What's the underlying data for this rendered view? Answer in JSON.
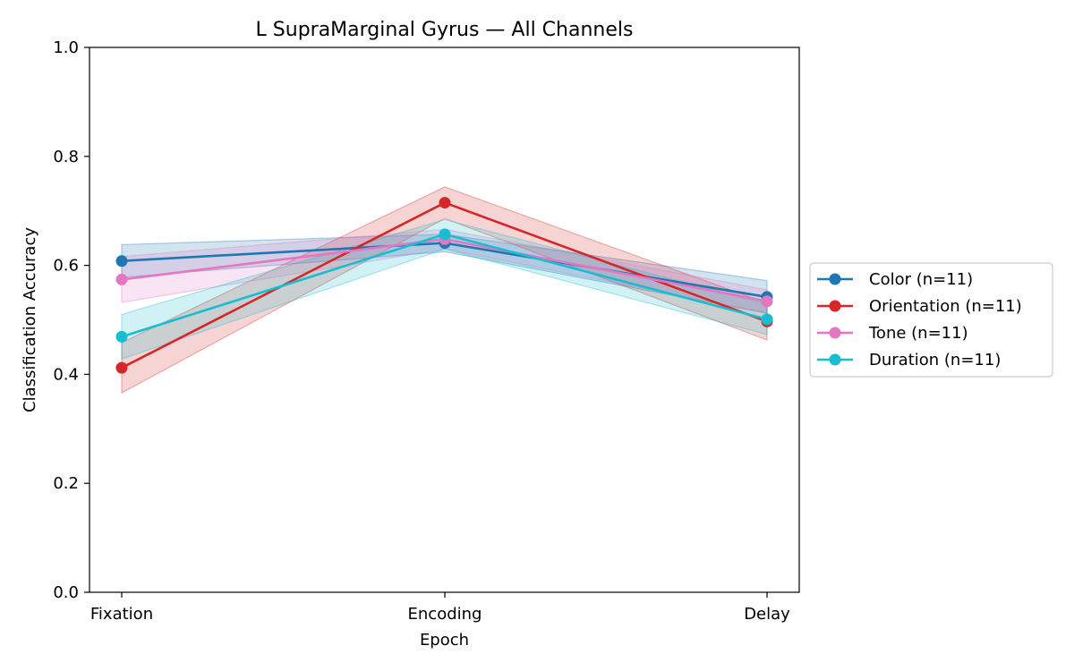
{
  "chart_data": {
    "type": "line",
    "title": "L SupraMarginal Gyrus — All Channels",
    "xlabel": "Epoch",
    "ylabel": "Classification Accuracy",
    "categories": [
      "Fixation",
      "Encoding",
      "Delay"
    ],
    "ylim": [
      0,
      1
    ],
    "yticks": [
      "0.0",
      "0.2",
      "0.4",
      "0.6",
      "0.8",
      "1.0"
    ],
    "grid": false,
    "legend_position": "right",
    "series": [
      {
        "name": "Color (n=11)",
        "color": "#1f77b4",
        "values": [
          0.608,
          0.641,
          0.542
        ],
        "lower": [
          0.578,
          0.625,
          0.512
        ],
        "upper": [
          0.638,
          0.657,
          0.572
        ]
      },
      {
        "name": "Orientation (n=11)",
        "color": "#d62728",
        "values": [
          0.412,
          0.715,
          0.497
        ],
        "lower": [
          0.366,
          0.686,
          0.463
        ],
        "upper": [
          0.458,
          0.744,
          0.531
        ]
      },
      {
        "name": "Tone (n=11)",
        "color": "#e377c2",
        "values": [
          0.574,
          0.648,
          0.534
        ],
        "lower": [
          0.532,
          0.63,
          0.513
        ],
        "upper": [
          0.616,
          0.666,
          0.555
        ]
      },
      {
        "name": "Duration (n=11)",
        "color": "#17becf",
        "values": [
          0.469,
          0.657,
          0.501
        ],
        "lower": [
          0.428,
          0.63,
          0.473
        ],
        "upper": [
          0.51,
          0.684,
          0.529
        ]
      }
    ]
  }
}
